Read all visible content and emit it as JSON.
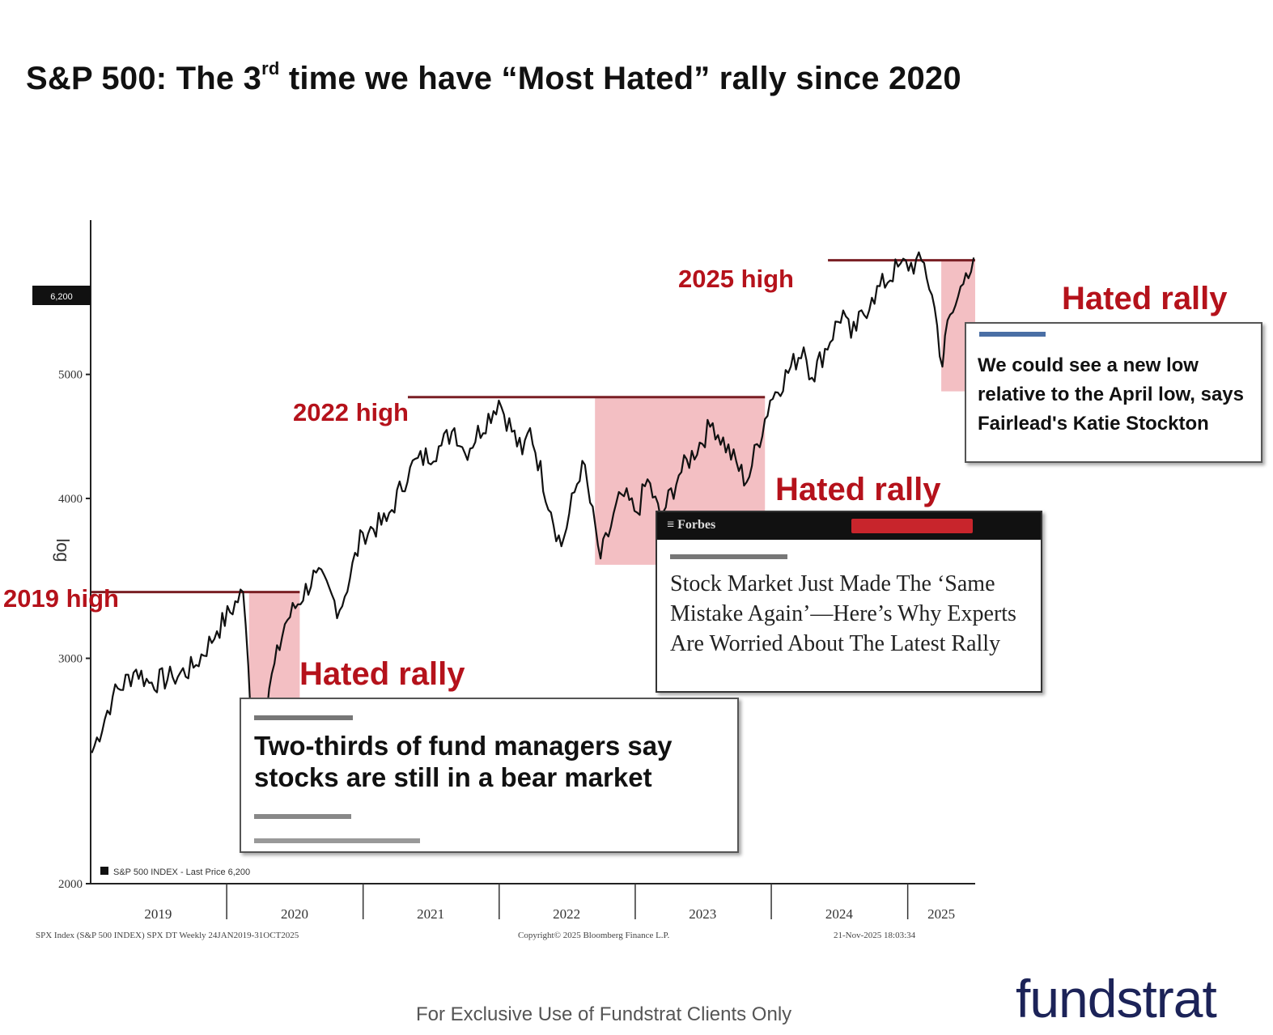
{
  "title": {
    "main": "S&P 500: The 3",
    "sup": "rd",
    "rest": " time we have “Most Hated” rally since 2020"
  },
  "chart_data": {
    "type": "line",
    "scale": "log",
    "ylim": [
      2000,
      6600
    ],
    "y_ticks": [
      2000,
      3000,
      4000,
      5000
    ],
    "x_ticks": [
      "2019",
      "2020",
      "2021",
      "2022",
      "2023",
      "2024",
      "2025"
    ],
    "x_range": [
      "2019-01-01",
      "2025-07-01"
    ],
    "current_value_label": "6,200",
    "legend": "S&P 500 INDEX - Last Price 6,200",
    "source_left": "SPX Index (S&P 500 INDEX) SPX DT Weekly 24JAN2019-31OCT2025",
    "source_center": "Copyright© 2025 Bloomberg Finance L.P.",
    "source_right": "21-Nov-2025 18:03:34",
    "series": [
      {
        "x": [
          "2019-01-04",
          "2019-03-01",
          "2019-05-03",
          "2019-06-07",
          "2019-08-09",
          "2019-10-04",
          "2019-12-06",
          "2020-02-14",
          "2020-02-28",
          "2020-03-20",
          "2020-04-24",
          "2020-06-05",
          "2020-08-28",
          "2020-10-30",
          "2020-12-31",
          "2021-03-05",
          "2021-05-07",
          "2021-07-30",
          "2021-09-03",
          "2021-10-01",
          "2021-12-31",
          "2022-03-04",
          "2022-03-25",
          "2022-05-20",
          "2022-06-17",
          "2022-08-12",
          "2022-09-30",
          "2022-11-25",
          "2023-01-06",
          "2023-02-03",
          "2023-03-10",
          "2023-04-28",
          "2023-07-28",
          "2023-10-27",
          "2023-12-29",
          "2024-03-28",
          "2024-04-19",
          "2024-07-12",
          "2024-08-02",
          "2024-09-27",
          "2024-12-06",
          "2025-02-14",
          "2025-03-14",
          "2025-04-04",
          "2025-04-11",
          "2025-05-09",
          "2025-06-06",
          "2025-06-27"
        ],
        "values": [
          2530,
          2800,
          2940,
          2870,
          2900,
          2950,
          3150,
          3380,
          2960,
          2300,
          2840,
          3190,
          3500,
          3270,
          3760,
          3840,
          4230,
          4400,
          4540,
          4340,
          4770,
          4330,
          4540,
          3900,
          3670,
          4280,
          3590,
          4030,
          3900,
          4140,
          3860,
          4170,
          4580,
          4120,
          4770,
          5250,
          4970,
          5610,
          5340,
          5740,
          6070,
          6110,
          5640,
          5070,
          5360,
          5660,
          6000,
          6170
        ]
      }
    ],
    "annotations": {
      "high_2019": {
        "label": "2019 high",
        "value": 3380,
        "from": "2019-01-01",
        "to": "2020-07-15"
      },
      "high_2022": {
        "label": "2022 high",
        "value": 4800,
        "from": "2021-05-01",
        "to": "2023-12-15"
      },
      "high_2025": {
        "label": "2025 high",
        "value": 6140,
        "from": "2024-06-01",
        "to": "2025-07-01"
      },
      "rallies": [
        {
          "label": "Hated rally",
          "from": "2020-03-01",
          "to": "2020-07-15",
          "low": 2250,
          "high": 3380
        },
        {
          "label": "Hated rally",
          "from": "2022-09-15",
          "to": "2023-12-15",
          "low": 3550,
          "high": 4800
        },
        {
          "label": "Hated rally",
          "from": "2025-04-01",
          "to": "2025-07-01",
          "low": 4850,
          "high": 6140
        }
      ]
    }
  },
  "cards": {
    "card1": {
      "headline": "Two-thirds of fund managers say stocks are still in a bear market"
    },
    "card2": {
      "brand": "≡ Forbes",
      "headline": "Stock Market Just Made The ‘Same Mistake Again’—Here’s Why Experts Are Worried About The Latest Rally"
    },
    "card3": {
      "headline": "We could see a new low relative to the April low, says Fairlead's Katie Stockton"
    }
  },
  "footer": "For Exclusive Use of Fundstrat Clients Only",
  "logo": "fundstrat",
  "colors": {
    "line": "#111111",
    "rally_fill": "#f3bfc3",
    "label_red": "#b5121b",
    "high_line": "#7a1f24"
  }
}
